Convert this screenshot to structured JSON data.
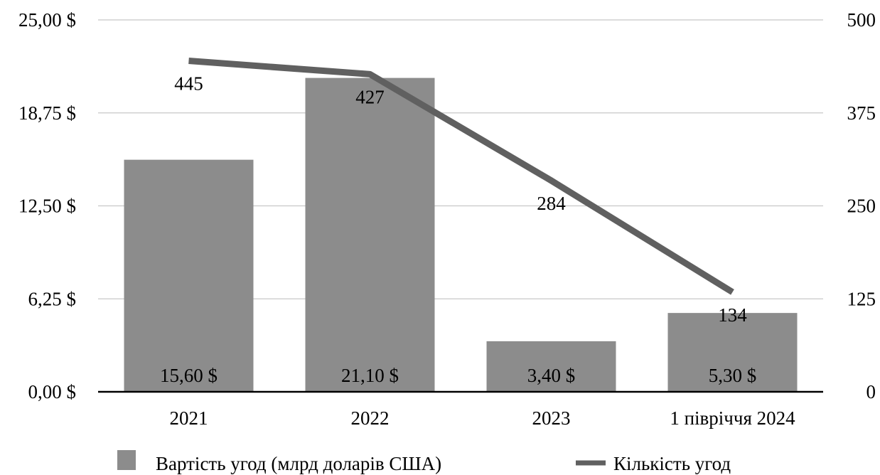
{
  "chart_data": {
    "type": "bar",
    "categories": [
      "2021",
      "2022",
      "2023",
      "1 півріччя 2024"
    ],
    "series": [
      {
        "name": "Вартість угод (млрд доларів США)",
        "type": "bar",
        "axis": "left",
        "values": [
          15.6,
          21.1,
          3.4,
          5.3
        ],
        "labels": [
          "15,60 $",
          "21,10 $",
          "3,40 $",
          "5,30 $"
        ],
        "color": "#8c8c8c"
      },
      {
        "name": "Кількість угод",
        "type": "line",
        "axis": "right",
        "values": [
          445,
          427,
          284,
          134
        ],
        "labels": [
          "445",
          "427",
          "284",
          "134"
        ],
        "color": "#606060"
      }
    ],
    "y_left": {
      "range": [
        0,
        25
      ],
      "ticks": [
        0,
        6.25,
        12.5,
        18.75,
        25
      ],
      "tick_labels": [
        "0,00 $",
        "6,25 $",
        "12,50 $",
        "18,75 $",
        "25,00 $"
      ]
    },
    "y_right": {
      "range": [
        0,
        500
      ],
      "ticks": [
        0,
        125,
        250,
        375,
        500
      ],
      "tick_labels": [
        "0",
        "125",
        "250",
        "375",
        "500"
      ]
    },
    "grid": true,
    "legend_position": "bottom",
    "title": "",
    "xlabel": "",
    "ylabel": "",
    "colors": {
      "gridline": "#c8c8c8",
      "baseline": "#000000"
    }
  }
}
